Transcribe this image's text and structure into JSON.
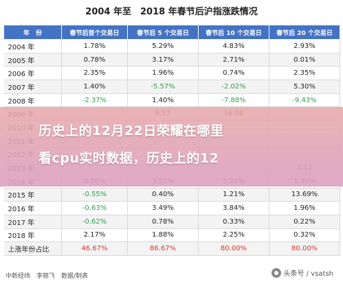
{
  "title": "2004 年至　2018 年春节后沪指涨跌情况",
  "headers": [
    "年　份",
    "春节后首个交易日",
    "春节后 5 个交易日",
    "春节后 10 个交易日",
    "春节后 20 个交易日"
  ],
  "rows": [
    {
      "year": "2004 年",
      "d1": "1.78%",
      "d5": "5.29%",
      "d10": "4.83%",
      "d20": "2.93%"
    },
    {
      "year": "2005 年",
      "d1": "0.78%",
      "d5": "3.17%",
      "d10": "2.71%",
      "d20": "0.01%"
    },
    {
      "year": "2006 年",
      "d1": "2.35%",
      "d5": "1.96%",
      "d10": "0.74%",
      "d20": "2.35%"
    },
    {
      "year": "2007 年",
      "d1": "1.40%",
      "d5": "-5.57%",
      "d10": "-2.02%",
      "d20": "5.30%"
    },
    {
      "year": "2008 年",
      "d1": "-2.37%",
      "d5": "1.40%",
      "d10": "-7.88%",
      "d20": "-9.43%"
    },
    {
      "year": "2009 年",
      "d1": "",
      "d5": "9.57",
      "d10": "16.58",
      "d20": ""
    },
    {
      "year": "2010 年",
      "d1": "",
      "d5": "",
      "d10": "",
      "d20": ""
    },
    {
      "year": "2011 年",
      "d1": "",
      "d5": "",
      "d10": "",
      "d20": ""
    },
    {
      "year": "2012 年",
      "d1": "",
      "d5": "",
      "d10": "",
      "d20": ""
    },
    {
      "year": "2013 年",
      "d1": "",
      "d5": "",
      "d10": "",
      "d20": "1.12"
    },
    {
      "year": "2014 年",
      "d1": "0.56%",
      "d5": "3.21%",
      "d10": "5.20%",
      "d20": "1.30%"
    },
    {
      "year": "2015 年",
      "d1": "-0.55%",
      "d5": "0.40%",
      "d10": "1.21%",
      "d20": "13.69%"
    },
    {
      "year": "2016 年",
      "d1": "-0.63%",
      "d5": "3.49%",
      "d10": "3.84%",
      "d20": "1.96%"
    },
    {
      "year": "2017 年",
      "d1": "-0.62%",
      "d5": "0.78%",
      "d10": "0.33%",
      "d20": "0.22%"
    },
    {
      "year": "2018 年",
      "d1": "2.17%",
      "d5": "1.88%",
      "d10": "2.25%",
      "d20": "0.32%"
    }
  ],
  "summary": {
    "year": "上涨年份占比",
    "d1": "46.67%",
    "d5": "86.67%",
    "d10": "80.00%",
    "d20": "80.00%"
  },
  "overlay": {
    "line1": "历史上的12月22日荣耀在哪里",
    "line2": "看cpu实时数据，历史上的12"
  },
  "source": "中新经纬　李丽飞　数据/制表",
  "watermark": "头条号 / vsatsh",
  "colors": {
    "header": "#4472c4",
    "negative": "#2e9e4f",
    "ratio": "#d9362b",
    "overlay": "#e6a6b4"
  }
}
